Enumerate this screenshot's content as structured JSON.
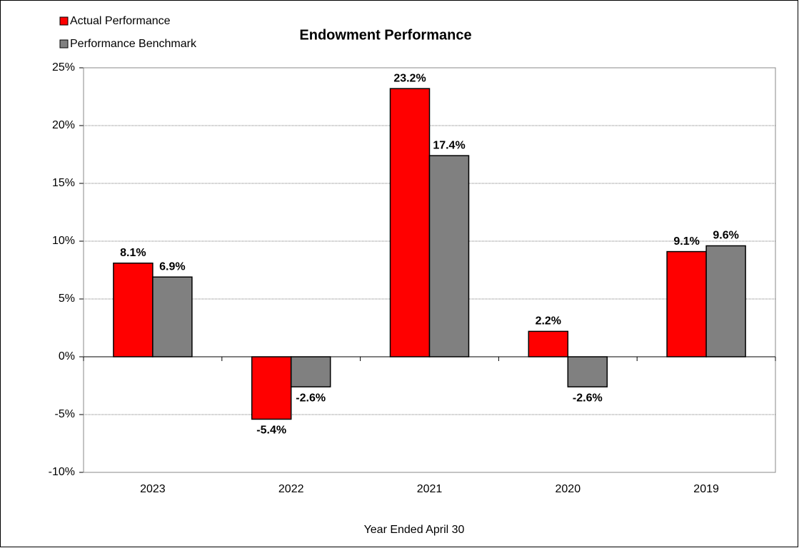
{
  "chart_data": {
    "type": "bar",
    "title": "Endowment Performance",
    "x_label": "Year Ended April 30",
    "categories": [
      "2023",
      "2022",
      "2021",
      "2020",
      "2019"
    ],
    "series": [
      {
        "name": "Actual Performance",
        "color": "#ff0000",
        "values": [
          8.1,
          -5.4,
          23.2,
          2.2,
          9.1
        ],
        "value_labels": [
          "8.1%",
          "-5.4%",
          "23.2%",
          "2.2%",
          "9.1%"
        ]
      },
      {
        "name": "Performance Benchmark",
        "color": "#808080",
        "values": [
          6.9,
          -2.6,
          17.4,
          -2.6,
          9.6
        ],
        "value_labels": [
          "6.9%",
          "-2.6%",
          "17.4%",
          "-2.6%",
          "9.6%"
        ]
      }
    ],
    "ylim": [
      -10,
      25
    ],
    "yticks": [
      {
        "value": -10,
        "label": "-10%"
      },
      {
        "value": -5,
        "label": "-5%"
      },
      {
        "value": 0,
        "label": "0%"
      },
      {
        "value": 5,
        "label": "5%"
      },
      {
        "value": 10,
        "label": "10%"
      },
      {
        "value": 15,
        "label": "15%"
      },
      {
        "value": 20,
        "label": "20%"
      },
      {
        "value": 25,
        "label": "25%"
      }
    ],
    "grid": true,
    "legend": "top-left"
  }
}
